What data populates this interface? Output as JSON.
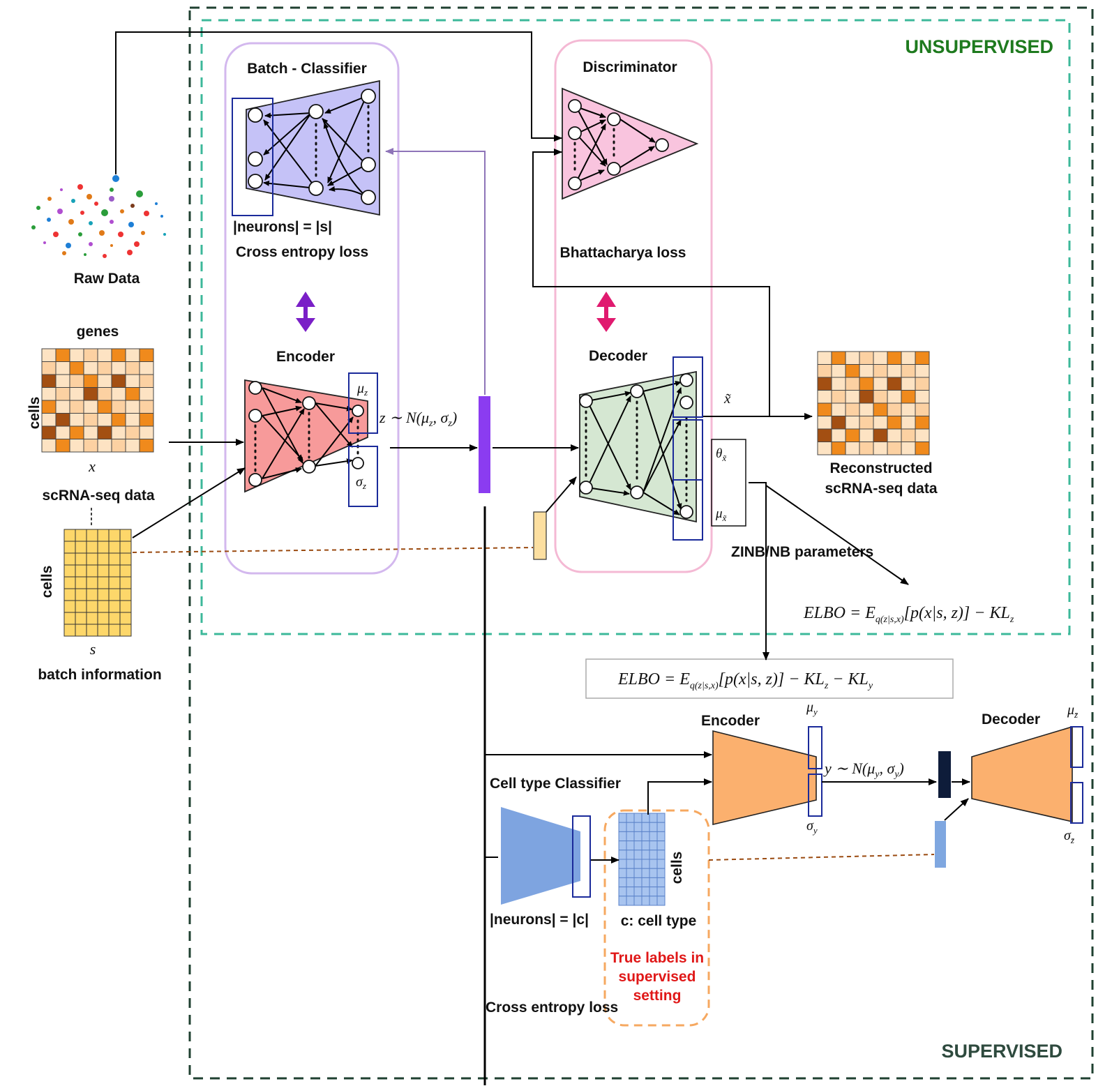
{
  "regions": {
    "unsupervised_label": "UNSUPERVISED",
    "supervised_label": "SUPERVISED",
    "colors": {
      "unsupervised": "#1e7a1e",
      "unsupervised_border": "#3cb89a",
      "supervised": "#2e4a3e",
      "supervised_border": "#1f4030"
    }
  },
  "inputs": {
    "raw_data_label": "Raw Data",
    "genes_label": "genes",
    "cells_label": "cells",
    "x_label": "x",
    "scrna_label": "scRNA-seq data",
    "batch_cells_label": "cells",
    "s_label": "s",
    "batch_info_label": "batch information"
  },
  "batch_classifier": {
    "title": "Batch - Classifier",
    "neurons_label": "|neurons| = |s|",
    "loss_label": "Cross entropy loss"
  },
  "encoder": {
    "title": "Encoder",
    "mu_label": "μ",
    "mu_sub": "z",
    "sigma_label": "σ",
    "sigma_sub": "z"
  },
  "latent": {
    "z_formula": "z ∼ N(μ",
    "z_formula_sub1": "z",
    "z_formula_mid": ", σ",
    "z_formula_sub2": "z",
    "z_formula_end": ")"
  },
  "discriminator": {
    "title": "Discriminator",
    "loss_label": "Bhattacharya loss"
  },
  "decoder": {
    "title": "Decoder",
    "x_tilde_label": "x̃",
    "theta_label": "θ",
    "theta_sub": "x̃",
    "mu_label": "μ",
    "mu_sub": "x̃",
    "zinb_label": "ZINB/NB parameters"
  },
  "reconstructed": {
    "line1": "Reconstructed",
    "line2": "scRNA-seq data"
  },
  "elbo": {
    "unsup_main": "ELBO = E",
    "unsup_sub": "q(z|s,x)",
    "unsup_rest": "[p(x|s, z)] − KL",
    "unsup_kl_sub": "z",
    "sup_main": "ELBO = E",
    "sup_sub": "q(z|s,x)",
    "sup_rest": "[p(x|s, z)] − KL",
    "sup_kl_sub": "z",
    "sup_rest2": " − KL",
    "sup_kl2_sub": "y"
  },
  "supervised_encoder": {
    "title": "Encoder",
    "mu_label": "μ",
    "mu_sub": "y",
    "sigma_label": "σ",
    "sigma_sub": "y",
    "y_formula": "y ∼ N(μ",
    "y_sub1": "y",
    "y_mid": ", σ",
    "y_sub2": "y",
    "y_end": ")"
  },
  "supervised_decoder": {
    "title": "Decoder",
    "mu_label": "μ",
    "mu_sub": "z̄",
    "sigma_label": "σ",
    "sigma_sub": "z̄"
  },
  "cell_type_classifier": {
    "title": "Cell type Classifier",
    "neurons_label": "|neurons| = |c|",
    "cells_label": "cells",
    "celltype_label": "c: cell type",
    "true_labels_l1": "True labels in",
    "true_labels_l2": "supervised",
    "true_labels_l3": "setting",
    "loss_label": "Cross entropy loss"
  }
}
